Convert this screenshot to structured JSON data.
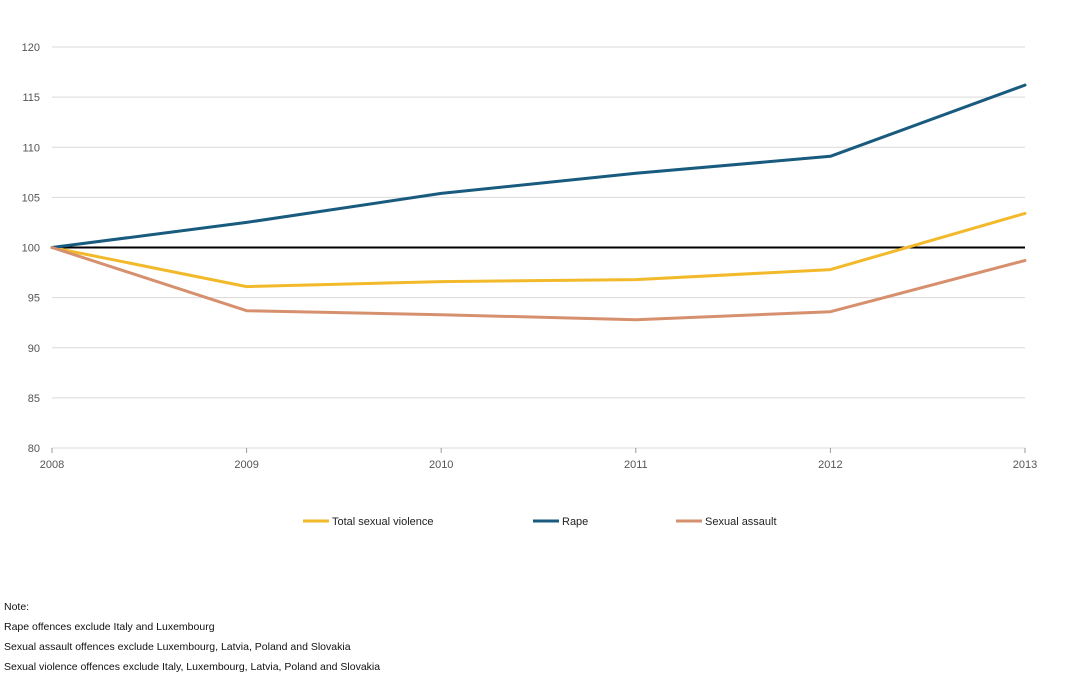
{
  "chart_data": {
    "type": "line",
    "categories": [
      "2008",
      "2009",
      "2010",
      "2011",
      "2012",
      "2013"
    ],
    "ylim": [
      80,
      120
    ],
    "yticks": [
      80,
      85,
      90,
      95,
      100,
      105,
      110,
      115,
      120
    ],
    "reference_line": 100,
    "grid": true,
    "legend_position": "bottom",
    "series": [
      {
        "name": "Total sexual violence",
        "color": "#f2b92b",
        "values": [
          100,
          96.1,
          96.6,
          96.8,
          97.8,
          103.4
        ]
      },
      {
        "name": "Rape",
        "color": "#185b7e",
        "values": [
          100,
          102.5,
          105.4,
          107.4,
          109.1,
          116.2
        ]
      },
      {
        "name": "Sexual assault",
        "color": "#d6906e",
        "values": [
          100,
          93.7,
          93.3,
          92.8,
          93.6,
          98.7
        ]
      }
    ]
  },
  "notes": {
    "heading": "Note:",
    "lines": [
      "Rape offences exclude Italy and Luxembourg",
      "Sexual assault offences exclude Luxembourg, Latvia, Poland and Slovakia",
      "Sexual violence offences exclude Italy, Luxembourg, Latvia, Poland and Slovakia"
    ]
  }
}
